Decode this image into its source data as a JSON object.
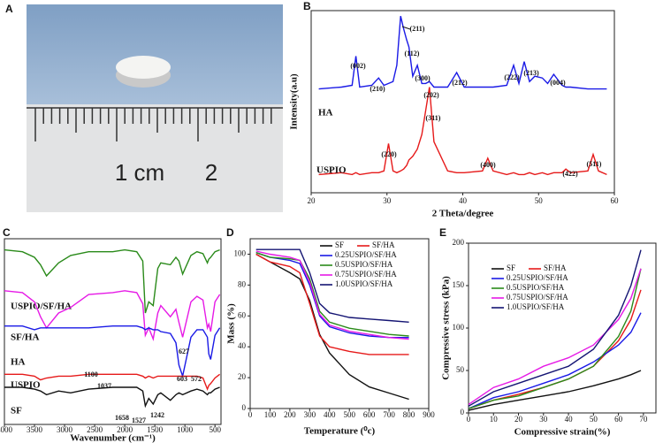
{
  "panel_labels": [
    "A",
    "B",
    "C",
    "D",
    "E"
  ],
  "photo": {
    "ruler_labels": [
      "1 cm",
      "2"
    ]
  },
  "chart_data": [
    {
      "type": "line",
      "x_label": "2 Theta/degree",
      "y_label": "Intensity(a.u)",
      "legend": "inline",
      "x": [
        21,
        24,
        25.4,
        25.9,
        26.4,
        28,
        28.9,
        29.6,
        30.2,
        30.8,
        31.3,
        31.8,
        32.2,
        32.6,
        32.9,
        33.4,
        34,
        34.6,
        35.1,
        35.6,
        36.2,
        38,
        39.2,
        40.2,
        42.6,
        43.3,
        44,
        45.8,
        46.7,
        47.4,
        48.1,
        48.8,
        49.5,
        50.5,
        51.2,
        52,
        53.1,
        53.6,
        54.2,
        56.5,
        57.2,
        57.9,
        59
      ],
      "xlim": [
        20,
        60
      ],
      "xticks": [
        20,
        30,
        40,
        50,
        60
      ],
      "ylim": [
        0,
        100
      ],
      "series": [
        {
          "name": "HA",
          "color": "#1a1ae6",
          "values": [
            57,
            58,
            59,
            75,
            58,
            59,
            63,
            59,
            60,
            61,
            70,
            97,
            90,
            84,
            80,
            64,
            70,
            60,
            60,
            61,
            58,
            58,
            66,
            58,
            58,
            58,
            58,
            59,
            70,
            60,
            72,
            61,
            64,
            63,
            60,
            65,
            59,
            58,
            58,
            57,
            57,
            57,
            57
          ]
        },
        {
          "name": "USPIO",
          "color": "#e61a1a",
          "values": [
            10,
            11,
            10,
            11,
            10,
            11,
            11,
            12,
            27,
            12,
            11,
            12,
            13,
            15,
            18,
            20,
            24,
            32,
            45,
            58,
            28,
            12,
            11,
            11,
            12,
            19,
            12,
            10,
            11,
            10,
            10,
            11,
            10,
            11,
            10,
            11,
            11,
            13,
            11,
            12,
            21,
            12,
            10
          ]
        }
      ],
      "annotations": [
        "(211)",
        "(112)",
        "(300)",
        "(002)",
        "(210)",
        "(202)",
        "(212)",
        "(222)",
        "(213)",
        "(004)",
        "(311)",
        "(220)",
        "(400)",
        "(422)",
        "(511)"
      ]
    },
    {
      "type": "line",
      "x_label": "Wavenumber (cm⁻¹)",
      "legend": "inline",
      "x": [
        4000,
        3700,
        3500,
        3400,
        3300,
        3100,
        2900,
        2600,
        2200,
        2000,
        1800,
        1700,
        1658,
        1600,
        1527,
        1450,
        1400,
        1242,
        1150,
        1100,
        1037,
        900,
        800,
        700,
        627,
        603,
        572,
        500,
        420
      ],
      "xlim": [
        4000,
        400
      ],
      "xticks": [
        4000,
        3500,
        3000,
        2500,
        2000,
        1500,
        1000,
        500
      ],
      "ylim": [
        0,
        100
      ],
      "series": [
        {
          "name": "USPIO/SF/HA",
          "color": "#2a8a1a",
          "values": [
            94,
            93,
            90,
            86,
            80,
            87,
            91,
            93,
            93,
            94,
            93,
            88,
            60,
            66,
            64,
            84,
            87,
            86,
            90,
            88,
            81,
            91,
            93,
            92,
            87,
            89,
            90,
            93,
            94
          ]
        },
        {
          "name": "SF/HA",
          "color": "#e61ae6",
          "values": [
            72,
            71,
            66,
            58,
            52,
            60,
            63,
            70,
            71,
            72,
            71,
            65,
            48,
            52,
            46,
            60,
            64,
            58,
            62,
            55,
            47,
            66,
            69,
            67,
            52,
            54,
            50,
            66,
            70
          ]
        },
        {
          "name": "HA",
          "color": "#1a1ae6",
          "values": [
            53,
            53,
            51,
            52,
            52,
            52,
            52,
            52,
            53,
            53,
            53,
            52,
            51,
            52,
            51,
            51,
            50,
            49,
            44,
            32,
            26,
            47,
            51,
            51,
            47,
            38,
            35,
            48,
            52
          ]
        },
        {
          "name": "USPIO",
          "color": "#e61a1a",
          "values": [
            27,
            27,
            26,
            24,
            25,
            26,
            26,
            27,
            27,
            27,
            27,
            26,
            25,
            26,
            25,
            26,
            26,
            26,
            26,
            26,
            26,
            26,
            26,
            25,
            19,
            21,
            22,
            25,
            27
          ]
        },
        {
          "name": "SF",
          "color": "#111111",
          "values": [
            20,
            20,
            19,
            18,
            16,
            18,
            17,
            19,
            20,
            20,
            20,
            18,
            10,
            14,
            11,
            16,
            17,
            13,
            16,
            17,
            16,
            18,
            19,
            18,
            16,
            17,
            17,
            19,
            20
          ]
        }
      ],
      "annotations": [
        "1100",
        "1037",
        "603",
        "572",
        "627",
        "1658",
        "1527",
        "1242"
      ]
    },
    {
      "type": "line",
      "x_label": "Temperature (⁰c)",
      "y_label": "Mass (%)",
      "legend": "upper right",
      "x": [
        30,
        100,
        200,
        250,
        300,
        350,
        400,
        500,
        600,
        700,
        800
      ],
      "xlim": [
        0,
        900
      ],
      "xticks": [
        0,
        100,
        200,
        300,
        400,
        500,
        600,
        700,
        800,
        900
      ],
      "ylim": [
        0,
        110
      ],
      "yticks": [
        0,
        20,
        40,
        60,
        80,
        100
      ],
      "series": [
        {
          "name": "SF",
          "color": "#111111",
          "values": [
            100,
            95,
            88,
            84,
            70,
            48,
            36,
            22,
            14,
            10,
            6
          ]
        },
        {
          "name": "SF/HA",
          "color": "#e61a1a",
          "values": [
            100,
            95,
            92,
            88,
            68,
            47,
            40,
            37,
            35,
            35,
            35
          ]
        },
        {
          "name": "0.25USPIO/SF/HA",
          "color": "#1a1ae6",
          "values": [
            101,
            98,
            96,
            94,
            80,
            60,
            53,
            49,
            47,
            46,
            46
          ]
        },
        {
          "name": "0.5USPIO/SF/HA",
          "color": "#2a8a1a",
          "values": [
            101,
            98,
            97,
            96,
            84,
            63,
            56,
            52,
            50,
            48,
            47
          ]
        },
        {
          "name": "0.75USPIO/SF/HA",
          "color": "#e61ae6",
          "values": [
            102,
            100,
            98,
            96,
            82,
            61,
            54,
            50,
            48,
            46,
            45
          ]
        },
        {
          "name": "1.0USPIO/SF/HA",
          "color": "#141473",
          "values": [
            103,
            103,
            103,
            103,
            88,
            68,
            62,
            59,
            58,
            57,
            56
          ]
        }
      ]
    },
    {
      "type": "line",
      "x_label": "Compressive strain(%)",
      "y_label": "Compressive stress (kPa)",
      "legend": "upper left",
      "x": [
        0,
        10,
        20,
        30,
        40,
        50,
        60,
        65,
        69
      ],
      "xlim": [
        0,
        75
      ],
      "xticks": [
        0,
        10,
        20,
        30,
        40,
        50,
        60,
        70
      ],
      "ylim": [
        0,
        200
      ],
      "yticks": [
        0,
        50,
        100,
        150,
        200
      ],
      "series": [
        {
          "name": "SF",
          "color": "#111111",
          "values": [
            3,
            10,
            15,
            20,
            25,
            32,
            40,
            45,
            50
          ]
        },
        {
          "name": "SF/HA",
          "color": "#e61a1a",
          "values": [
            5,
            15,
            22,
            30,
            40,
            55,
            85,
            110,
            145
          ]
        },
        {
          "name": "0.25USPIO/SF/HA",
          "color": "#1a1ae6",
          "values": [
            5,
            18,
            25,
            35,
            45,
            60,
            80,
            95,
            118
          ]
        },
        {
          "name": "0.5USPIO/SF/HA",
          "color": "#2a8a1a",
          "values": [
            5,
            15,
            20,
            30,
            40,
            55,
            90,
            120,
            170
          ]
        },
        {
          "name": "0.75USPIO/SF/HA",
          "color": "#e61ae6",
          "values": [
            10,
            30,
            40,
            55,
            65,
            80,
            110,
            135,
            170
          ]
        },
        {
          "name": "1.0USPIO/SF/HA",
          "color": "#141473",
          "values": [
            8,
            25,
            35,
            45,
            55,
            75,
            115,
            150,
            192
          ]
        }
      ]
    }
  ]
}
